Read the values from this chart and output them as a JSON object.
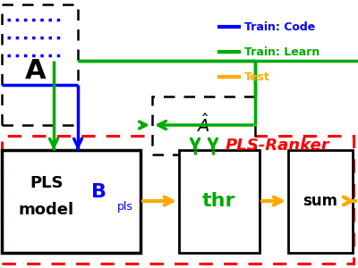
{
  "bg_color": "#ffffff",
  "blue": "#0000ff",
  "green": "#00aa00",
  "orange": "#ffaa00",
  "red": "#ff0000",
  "black": "#000000",
  "legend_items": [
    {
      "label": "Train: Code",
      "color": "#0000ff"
    },
    {
      "label": "Train: Learn",
      "color": "#00aa00"
    },
    {
      "label": "Test",
      "color": "#ffaa00"
    }
  ],
  "pls_ranker_text": "PLS-Ranker"
}
